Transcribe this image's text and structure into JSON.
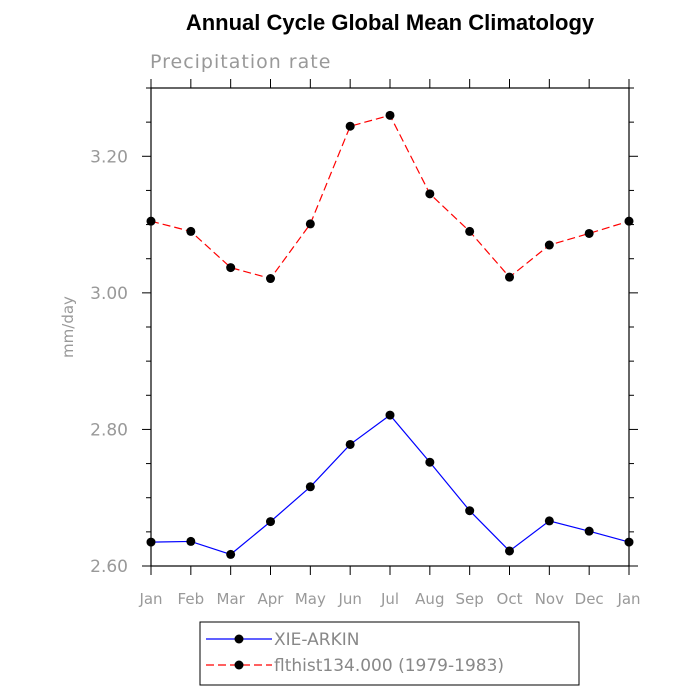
{
  "chart_data": {
    "type": "line",
    "title": "Annual Cycle Global Mean Climatology",
    "subtitle": "Precipitation rate",
    "xlabel": "",
    "ylabel": "mm/day",
    "categories": [
      "Jan",
      "Feb",
      "Mar",
      "Apr",
      "May",
      "Jun",
      "Jul",
      "Aug",
      "Sep",
      "Oct",
      "Nov",
      "Dec",
      "Jan"
    ],
    "ylim": [
      2.6,
      3.3
    ],
    "yticks": [
      2.6,
      2.8,
      3.0,
      3.2
    ],
    "ytick_labels": [
      "2.60",
      "2.80",
      "3.00",
      "3.20"
    ],
    "grid": false,
    "legend_position": "bottom",
    "series": [
      {
        "name": "XIE-ARKIN",
        "color": "#0000ff",
        "dash": "solid",
        "values": [
          2.635,
          2.636,
          2.617,
          2.665,
          2.716,
          2.778,
          2.821,
          2.752,
          2.681,
          2.622,
          2.666,
          2.651,
          2.635
        ]
      },
      {
        "name": "flthist134.000 (1979-1983)",
        "color": "#ff0000",
        "dash": "dashed",
        "values": [
          3.105,
          3.09,
          3.037,
          3.021,
          3.101,
          3.244,
          3.26,
          3.145,
          3.09,
          3.023,
          3.07,
          3.087,
          3.105
        ]
      }
    ]
  }
}
